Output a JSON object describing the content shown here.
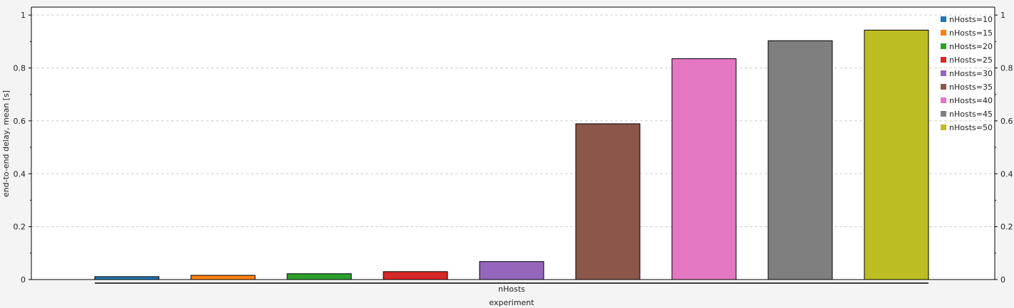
{
  "chart_data": {
    "type": "bar",
    "title": "",
    "xlabel": "experiment",
    "group_label": "nHosts",
    "ylabel": "end-to-end delay, mean [s]",
    "ylim": [
      0,
      1.03
    ],
    "yticks": [
      0,
      0.2,
      0.4,
      0.6,
      0.8,
      1
    ],
    "ytick_labels": [
      "0",
      "0.2",
      "0.4",
      "0.6",
      "0.8",
      "1"
    ],
    "grid": true,
    "legend_position": "top-right",
    "series": [
      {
        "name": "nHosts=10",
        "value": 0.011,
        "color": "#1f77b4"
      },
      {
        "name": "nHosts=15",
        "value": 0.016,
        "color": "#ff7f0e"
      },
      {
        "name": "nHosts=20",
        "value": 0.022,
        "color": "#2ca02c"
      },
      {
        "name": "nHosts=25",
        "value": 0.03,
        "color": "#d62728"
      },
      {
        "name": "nHosts=30",
        "value": 0.068,
        "color": "#9467bd"
      },
      {
        "name": "nHosts=35",
        "value": 0.589,
        "color": "#8c564b"
      },
      {
        "name": "nHosts=40",
        "value": 0.835,
        "color": "#e377c2"
      },
      {
        "name": "nHosts=45",
        "value": 0.903,
        "color": "#7f7f7f"
      },
      {
        "name": "nHosts=50",
        "value": 0.943,
        "color": "#bcbd22"
      }
    ]
  }
}
